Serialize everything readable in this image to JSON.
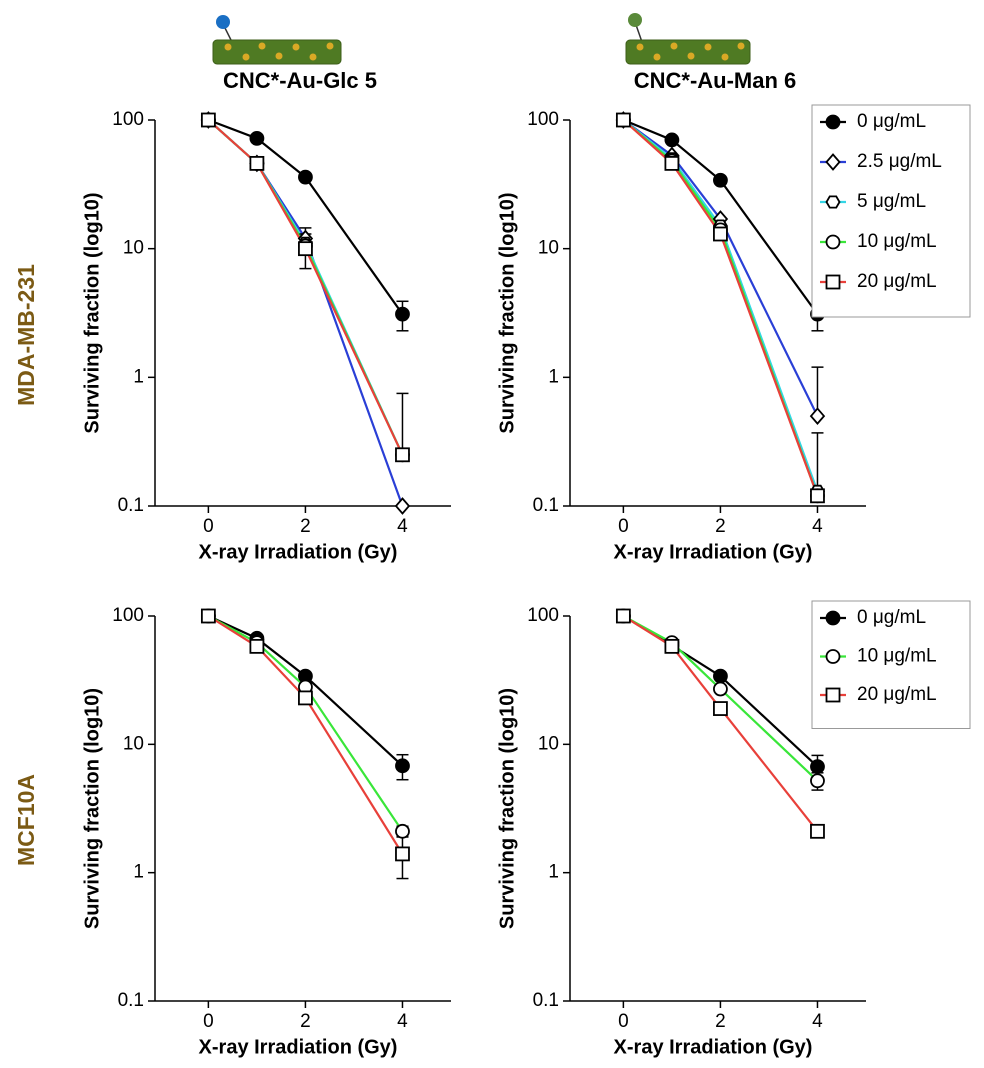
{
  "row_labels": [
    "MDA-MB-231",
    "MCF10A"
  ],
  "chart_data": [
    {
      "type": "line",
      "title": "CNC*-Au-Glc 5",
      "xlabel": "X-ray Irradiation (Gy)",
      "ylabel": "Surviving fraction (log10)",
      "x": [
        0,
        1,
        2,
        4
      ],
      "xlim": [
        -1.1,
        5
      ],
      "xticks": [
        0,
        2,
        4
      ],
      "ylim": [
        0.1,
        100
      ],
      "yticks": [
        0.1,
        1,
        10,
        100
      ],
      "log_y": true,
      "series": [
        {
          "color": "#000000",
          "marker": "circle-filled",
          "values": [
            100,
            72,
            36,
            3.1
          ],
          "errors": [
            null,
            null,
            null,
            0.8
          ]
        },
        {
          "color": "#2a3fd6",
          "marker": "diamond",
          "values": [
            100,
            46,
            12,
            0.1
          ],
          "errors": [
            null,
            null,
            2.5,
            null
          ]
        },
        {
          "color": "#33d6e6",
          "marker": "hexagon",
          "values": [
            100,
            46,
            11,
            0.25
          ]
        },
        {
          "color": "#39e639",
          "marker": "circle",
          "values": [
            100,
            46,
            10.5,
            0.25
          ]
        },
        {
          "color": "#e8403a",
          "marker": "square",
          "values": [
            100,
            46,
            10,
            0.25
          ],
          "errors": [
            null,
            null,
            3,
            0.5
          ]
        }
      ]
    },
    {
      "type": "line",
      "title": "CNC*-Au-Man 6",
      "xlabel": "X-ray Irradiation (Gy)",
      "ylabel": "Surviving fraction (log10)",
      "x": [
        0,
        1,
        2,
        4
      ],
      "xlim": [
        -1.1,
        5
      ],
      "xticks": [
        0,
        2,
        4
      ],
      "ylim": [
        0.1,
        100
      ],
      "yticks": [
        0.1,
        1,
        10,
        100
      ],
      "log_y": true,
      "legend": "upper right",
      "series": [
        {
          "name": "0 μg/mL",
          "color": "#000000",
          "marker": "circle-filled",
          "values": [
            100,
            70,
            34,
            3.1
          ],
          "errors": [
            null,
            null,
            null,
            0.8
          ]
        },
        {
          "name": "2.5 μg/mL",
          "color": "#2a3fd6",
          "marker": "diamond",
          "values": [
            100,
            53,
            17,
            0.5
          ],
          "errors": [
            null,
            null,
            null,
            0.7
          ]
        },
        {
          "name": "5 μg/mL",
          "color": "#33d6e6",
          "marker": "hexagon",
          "values": [
            100,
            50,
            15,
            0.13
          ]
        },
        {
          "name": "10 μg/mL",
          "color": "#39e639",
          "marker": "circle",
          "values": [
            100,
            48,
            14,
            0.12
          ]
        },
        {
          "name": "20 μg/mL",
          "color": "#e8403a",
          "marker": "square",
          "values": [
            100,
            46,
            13,
            0.12
          ],
          "errors": [
            null,
            null,
            null,
            0.25
          ]
        }
      ]
    },
    {
      "type": "line",
      "xlabel": "X-ray Irradiation (Gy)",
      "ylabel": "Surviving fraction (log10)",
      "x": [
        0,
        1,
        2,
        4
      ],
      "xlim": [
        -1.1,
        5
      ],
      "xticks": [
        0,
        2,
        4
      ],
      "ylim": [
        0.1,
        100
      ],
      "yticks": [
        0.1,
        1,
        10,
        100
      ],
      "log_y": true,
      "series": [
        {
          "color": "#000000",
          "marker": "circle-filled",
          "values": [
            100,
            67,
            34,
            6.8
          ],
          "errors": [
            null,
            null,
            null,
            1.5
          ]
        },
        {
          "color": "#39e639",
          "marker": "circle",
          "values": [
            100,
            62,
            28,
            2.1
          ],
          "errors": [
            null,
            null,
            null,
            0.2
          ]
        },
        {
          "color": "#e8403a",
          "marker": "square",
          "values": [
            100,
            58,
            23,
            1.4
          ],
          "errors": [
            null,
            null,
            null,
            0.5
          ]
        }
      ]
    },
    {
      "type": "line",
      "xlabel": "X-ray Irradiation (Gy)",
      "ylabel": "Surviving fraction (log10)",
      "x": [
        0,
        1,
        2,
        4
      ],
      "xlim": [
        -1.1,
        5
      ],
      "xticks": [
        0,
        2,
        4
      ],
      "ylim": [
        0.1,
        100
      ],
      "yticks": [
        0.1,
        1,
        10,
        100
      ],
      "log_y": true,
      "legend": "upper right",
      "series": [
        {
          "name": "0 μg/mL",
          "color": "#000000",
          "marker": "circle-filled",
          "values": [
            100,
            59,
            34,
            6.7
          ],
          "errors": [
            null,
            null,
            null,
            1.5
          ]
        },
        {
          "name": "10 μg/mL",
          "color": "#39e639",
          "marker": "circle",
          "values": [
            100,
            62,
            27,
            5.2
          ],
          "errors": [
            null,
            null,
            null,
            0.8
          ]
        },
        {
          "name": "20 μg/mL",
          "color": "#e8403a",
          "marker": "square",
          "values": [
            100,
            58,
            19,
            2.1
          ]
        }
      ]
    }
  ]
}
